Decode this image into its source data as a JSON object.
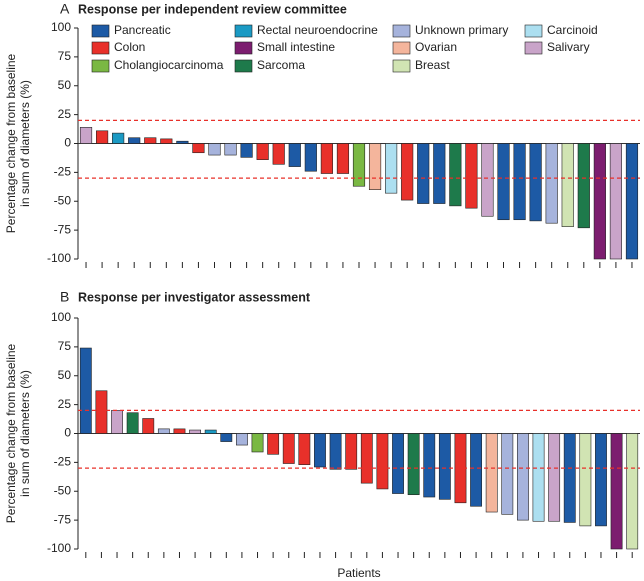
{
  "chart_data": [
    {
      "type": "bar",
      "panel": "A",
      "title": "Response per independent review committee",
      "ylabel": [
        "Percentage change from baseline",
        "in sum of diameters (%)"
      ],
      "ylim": [
        -100,
        100
      ],
      "yticks": [
        -100,
        -75,
        -50,
        -25,
        0,
        25,
        50,
        75,
        100
      ],
      "hlines": [
        20,
        -30
      ],
      "hline_color": "#e8302a",
      "legend": [
        {
          "name": "Pancreatic",
          "color": "#1d5aa5"
        },
        {
          "name": "Colon",
          "color": "#e8302a"
        },
        {
          "name": "Cholangiocarcinoma",
          "color": "#7ab843"
        },
        {
          "name": "Rectal neuroendocrine",
          "color": "#1b9ac4"
        },
        {
          "name": "Small intestine",
          "color": "#7c1d6f"
        },
        {
          "name": "Sarcoma",
          "color": "#1e7a4b"
        },
        {
          "name": "Unknown primary",
          "color": "#a6b3dc"
        },
        {
          "name": "Ovarian",
          "color": "#f4b59c"
        },
        {
          "name": "Breast",
          "color": "#d1e4b3"
        },
        {
          "name": "Carcinoid",
          "color": "#acdff0"
        },
        {
          "name": "Salivary",
          "color": "#c9a4c9"
        }
      ],
      "types": [
        "Salivary",
        "Colon",
        "Rectal neuroendocrine",
        "Pancreatic",
        "Colon",
        "Colon",
        "Pancreatic",
        "Colon",
        "Unknown primary",
        "Unknown primary",
        "Pancreatic",
        "Colon",
        "Colon",
        "Pancreatic",
        "Pancreatic",
        "Colon",
        "Colon",
        "Cholangiocarcinoma",
        "Ovarian",
        "Carcinoid",
        "Colon",
        "Pancreatic",
        "Pancreatic",
        "Sarcoma",
        "Colon",
        "Salivary",
        "Pancreatic",
        "Pancreatic",
        "Pancreatic",
        "Unknown primary",
        "Breast",
        "Sarcoma",
        "Small intestine",
        "Salivary",
        "Pancreatic"
      ],
      "values": [
        14,
        11,
        9,
        5,
        5,
        4,
        2,
        -8,
        -10,
        -10,
        -12,
        -14,
        -18,
        -20,
        -24,
        -26,
        -26,
        -37,
        -40,
        -43,
        -49,
        -52,
        -52,
        -54,
        -56,
        -63,
        -66,
        -66,
        -67,
        -69,
        -72,
        -73,
        -100,
        -100,
        -100
      ]
    },
    {
      "type": "bar",
      "panel": "B",
      "title": "Response per investigator assessment",
      "ylabel": [
        "Percentage change from baseline",
        "in sum of diameters (%)"
      ],
      "xlabel": "Patients",
      "ylim": [
        -100,
        100
      ],
      "yticks": [
        -100,
        -75,
        -50,
        -25,
        0,
        25,
        50,
        75,
        100
      ],
      "hlines": [
        20,
        -30
      ],
      "hline_color": "#e8302a",
      "types": [
        "Pancreatic",
        "Colon",
        "Salivary",
        "Sarcoma",
        "Colon",
        "Unknown primary",
        "Colon",
        "Salivary",
        "Rectal neuroendocrine",
        "Pancreatic",
        "Unknown primary",
        "Cholangiocarcinoma",
        "Colon",
        "Colon",
        "Colon",
        "Pancreatic",
        "Pancreatic",
        "Colon",
        "Colon",
        "Colon",
        "Pancreatic",
        "Sarcoma",
        "Pancreatic",
        "Pancreatic",
        "Colon",
        "Pancreatic",
        "Ovarian",
        "Unknown primary",
        "Unknown primary",
        "Carcinoid",
        "Salivary",
        "Pancreatic",
        "Breast",
        "Pancreatic",
        "Small intestine",
        "Breast"
      ],
      "values": [
        74,
        37,
        20,
        18,
        13,
        4,
        4,
        3,
        3,
        -7,
        -10,
        -16,
        -18,
        -26,
        -27,
        -29,
        -31,
        -31,
        -43,
        -48,
        -52,
        -53,
        -55,
        -57,
        -60,
        -63,
        -68,
        -70,
        -75,
        -76,
        -76,
        -77,
        -80,
        -80,
        -100,
        -100
      ]
    }
  ]
}
